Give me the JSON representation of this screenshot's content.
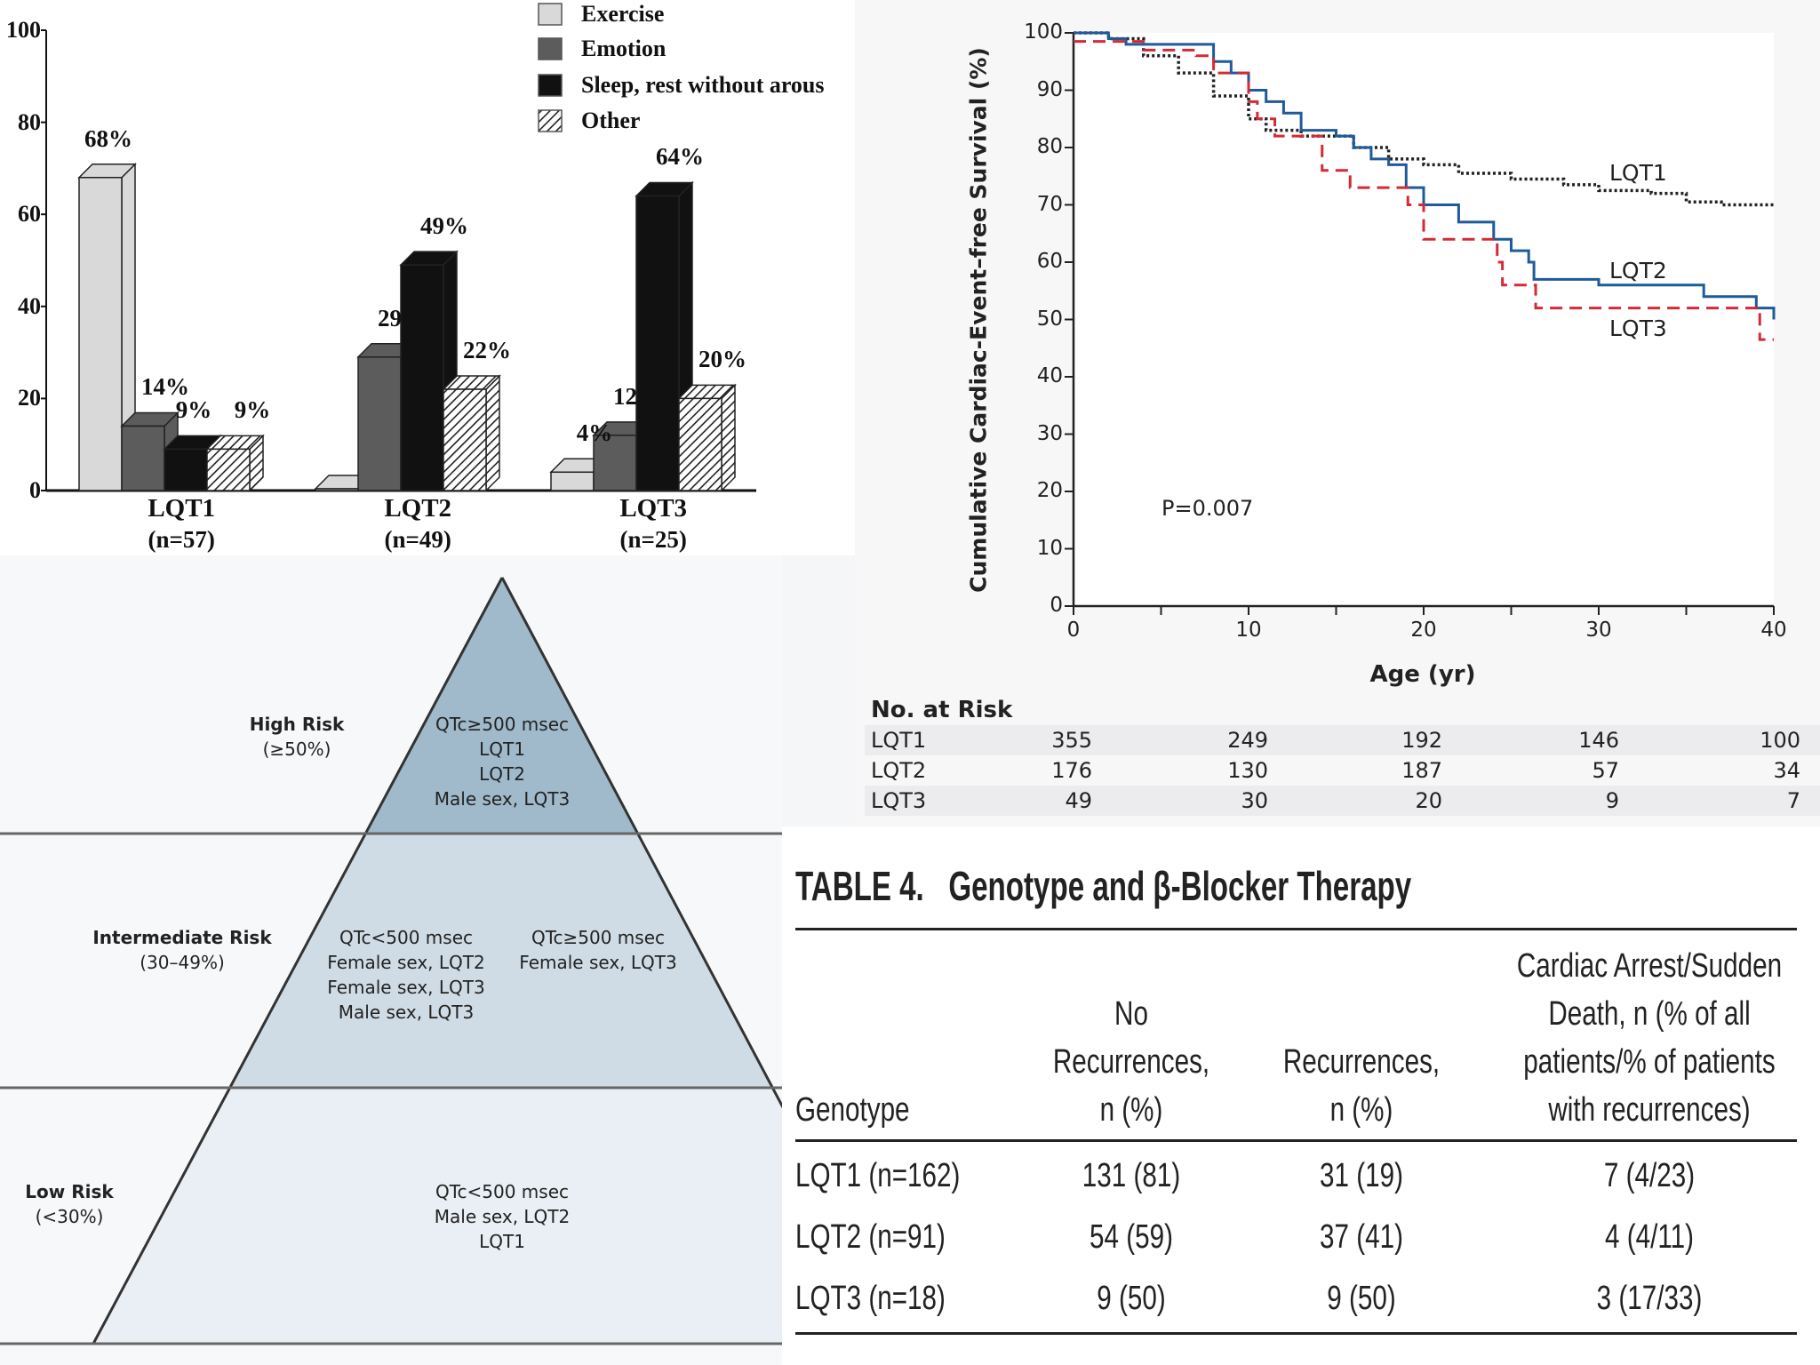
{
  "chart_data": [
    {
      "type": "bar",
      "style": "3d-grouped",
      "categories": [
        "LQT1",
        "LQT2",
        "LQT3"
      ],
      "category_sublabels": [
        "(n=57)",
        "(n=49)",
        "(n=25)"
      ],
      "series": [
        {
          "name": "Exercise",
          "values": [
            68,
            0,
            4
          ],
          "color": "#d9d9d9",
          "fill": "solid"
        },
        {
          "name": "Emotion",
          "values": [
            14,
            29,
            12
          ],
          "color": "#5c5c5c",
          "fill": "solid"
        },
        {
          "name": "Sleep, rest without arous",
          "values": [
            9,
            49,
            64
          ],
          "color": "#111111",
          "fill": "solid"
        },
        {
          "name": "Other",
          "values": [
            9,
            22,
            20
          ],
          "color": "#ffffff",
          "fill": "hatched"
        }
      ],
      "data_labels": [
        [
          "68%",
          "14%",
          "9%",
          "9%"
        ],
        [
          "",
          "29%",
          "49%",
          "22%"
        ],
        [
          "4%",
          "12%",
          "64%",
          "20%"
        ]
      ],
      "yticks": [
        "0",
        "20",
        "40",
        "60",
        "80",
        "100"
      ],
      "ylim": [
        0,
        100
      ],
      "legend": "top-right",
      "grid": false
    },
    {
      "type": "line",
      "style": "step",
      "xlabel": "Age (yr)",
      "ylabel": "Cumulative Cardiac-Event–free Survival (%)",
      "xlim": [
        0,
        40
      ],
      "ylim": [
        0,
        100
      ],
      "xticks": [
        "0",
        "10",
        "20",
        "30",
        "40"
      ],
      "yticks": [
        "0",
        "10",
        "20",
        "30",
        "40",
        "50",
        "60",
        "70",
        "80",
        "90",
        "100"
      ],
      "annotation": "P=0.007",
      "grid": false,
      "series": [
        {
          "name": "LQT1",
          "color": "#222222",
          "dash": "dotted",
          "points": [
            [
              0,
              100
            ],
            [
              2,
              99
            ],
            [
              4,
              96
            ],
            [
              6,
              93
            ],
            [
              8,
              89
            ],
            [
              10,
              85
            ],
            [
              11,
              83
            ],
            [
              13,
              82
            ],
            [
              16,
              80
            ],
            [
              18,
              78
            ],
            [
              20,
              77
            ],
            [
              22,
              75.5
            ],
            [
              25,
              74.5
            ],
            [
              28,
              73.5
            ],
            [
              30,
              72.5
            ],
            [
              33,
              72
            ],
            [
              35,
              70.5
            ],
            [
              37,
              70
            ],
            [
              40,
              70
            ]
          ]
        },
        {
          "name": "LQT2",
          "color": "#1f5a9a",
          "dash": "solid",
          "points": [
            [
              0,
              100
            ],
            [
              2,
              99
            ],
            [
              3,
              98
            ],
            [
              7,
              98
            ],
            [
              8,
              95
            ],
            [
              9,
              93
            ],
            [
              10,
              90
            ],
            [
              11,
              88
            ],
            [
              12,
              86
            ],
            [
              13,
              83
            ],
            [
              15,
              82
            ],
            [
              16,
              80
            ],
            [
              17,
              78
            ],
            [
              18,
              77
            ],
            [
              19,
              73
            ],
            [
              20,
              70
            ],
            [
              22,
              67
            ],
            [
              24,
              64
            ],
            [
              25,
              62
            ],
            [
              26,
              60
            ],
            [
              26.3,
              57
            ],
            [
              29,
              57
            ],
            [
              30,
              56
            ],
            [
              35,
              56
            ],
            [
              36,
              54
            ],
            [
              39,
              52
            ],
            [
              40,
              50
            ]
          ]
        },
        {
          "name": "LQT3",
          "color": "#d42a35",
          "dash": "dashed",
          "points": [
            [
              0,
              98.5
            ],
            [
              4,
              97
            ],
            [
              7,
              96
            ],
            [
              8,
              93
            ],
            [
              10,
              88
            ],
            [
              10.5,
              85
            ],
            [
              11.5,
              82
            ],
            [
              14.2,
              76
            ],
            [
              15.8,
              73
            ],
            [
              19.1,
              70
            ],
            [
              20,
              64
            ],
            [
              24.2,
              60
            ],
            [
              24.5,
              56
            ],
            [
              26.4,
              52
            ],
            [
              39.2,
              46.5
            ],
            [
              40,
              46.5
            ]
          ]
        }
      ],
      "risk_table": {
        "title": "No. at Risk",
        "rows": [
          {
            "label": "LQT1",
            "values": [
              "355",
              "249",
              "192",
              "146",
              "100"
            ]
          },
          {
            "label": "LQT2",
            "values": [
              "176",
              "130",
              "187",
              "57",
              "34"
            ]
          },
          {
            "label": "LQT3",
            "values": [
              "49",
              "30",
              "20",
              "9",
              "7"
            ]
          }
        ]
      }
    }
  ],
  "risk_pyramid": {
    "tiers": [
      {
        "title": "High Risk",
        "range": "(≥50%)",
        "color": "#a0bacb",
        "groups": [
          [
            "QTc≥500 msec",
            "LQT1",
            "LQT2",
            "Male sex, LQT3"
          ]
        ]
      },
      {
        "title": "Intermediate Risk",
        "range": "(30–49%)",
        "color": "#d0dce5",
        "groups": [
          [
            "QTc<500 msec",
            "Female sex, LQT2",
            "Female sex, LQT3",
            "Male sex, LQT3"
          ],
          [
            "QTc≥500 msec",
            "Female sex, LQT3"
          ]
        ]
      },
      {
        "title": "Low Risk",
        "range": "(<30%)",
        "color": "#e9eff4",
        "groups": [
          [
            "QTc<500 msec",
            "Male sex, LQT2",
            "LQT1"
          ]
        ]
      }
    ]
  },
  "table4": {
    "title_num": "TABLE 4.",
    "title_text": "Genotype and β-Blocker Therapy",
    "headers": [
      [
        "Genotype"
      ],
      [
        "No",
        "Recurrences,",
        "n (%)"
      ],
      [
        "Recurrences,",
        "n (%)"
      ],
      [
        "Cardiac Arrest/Sudden",
        "Death, n (% of all",
        "patients/% of patients",
        "with recurrences)"
      ]
    ],
    "rows": [
      [
        "LQT1 (n=162)",
        "131 (81)",
        "31 (19)",
        "7 (4/23)"
      ],
      [
        "LQT2 (n=91)",
        "54 (59)",
        "37 (41)",
        "4 (4/11)"
      ],
      [
        "LQT3 (n=18)",
        "9 (50)",
        "9 (50)",
        "3 (17/33)"
      ]
    ]
  }
}
